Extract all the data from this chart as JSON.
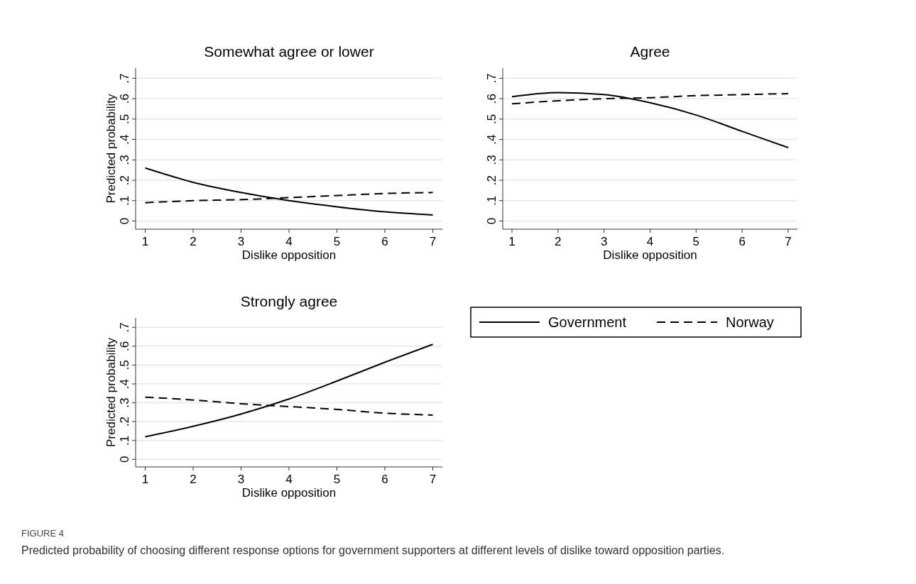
{
  "chart_data": [
    {
      "type": "line",
      "title": "Somewhat agree or lower",
      "xlabel": "Dislike opposition",
      "ylabel": "Predicted probability",
      "x": [
        1,
        2,
        3,
        4,
        5,
        6,
        7
      ],
      "xlim": [
        0.8,
        7.2
      ],
      "xticks": [
        1,
        2,
        3,
        4,
        5,
        6,
        7
      ],
      "ylim": [
        -0.04,
        0.75
      ],
      "yticks": [
        {
          "value": 0,
          "label": "0"
        },
        {
          "value": 0.1,
          "label": ".1"
        },
        {
          "value": 0.2,
          "label": ".2"
        },
        {
          "value": 0.3,
          "label": ".3"
        },
        {
          "value": 0.4,
          "label": ".4"
        },
        {
          "value": 0.5,
          "label": ".5"
        },
        {
          "value": 0.6,
          "label": ".6"
        },
        {
          "value": 0.7,
          "label": ".7"
        }
      ],
      "grid": "y",
      "series": [
        {
          "color": "#000000",
          "line_style": "solid",
          "values": [
            0.26,
            0.19,
            0.14,
            0.1,
            0.07,
            0.045,
            0.03
          ]
        },
        {
          "color": "#000000",
          "line_style": "dashed",
          "values": [
            0.09,
            0.1,
            0.105,
            0.115,
            0.125,
            0.135,
            0.14
          ]
        }
      ]
    },
    {
      "type": "line",
      "title": "Agree",
      "xlabel": "Dislike opposition",
      "x": [
        1,
        2,
        3,
        4,
        5,
        6,
        7
      ],
      "xlim": [
        0.8,
        7.2
      ],
      "xticks": [
        1,
        2,
        3,
        4,
        5,
        6,
        7
      ],
      "ylim": [
        -0.04,
        0.75
      ],
      "yticks": [
        {
          "value": 0,
          "label": "0"
        },
        {
          "value": 0.1,
          "label": ".1"
        },
        {
          "value": 0.2,
          "label": ".2"
        },
        {
          "value": 0.3,
          "label": ".3"
        },
        {
          "value": 0.4,
          "label": ".4"
        },
        {
          "value": 0.5,
          "label": ".5"
        },
        {
          "value": 0.6,
          "label": ".6"
        },
        {
          "value": 0.7,
          "label": ".7"
        }
      ],
      "grid": "y",
      "legend": "bottom",
      "series": [
        {
          "name": "Government",
          "color": "#000000",
          "line_style": "solid",
          "values": [
            0.61,
            0.63,
            0.62,
            0.58,
            0.52,
            0.44,
            0.36
          ]
        },
        {
          "name": "Norway",
          "color": "#000000",
          "line_style": "dashed",
          "values": [
            0.575,
            0.59,
            0.6,
            0.605,
            0.615,
            0.62,
            0.625
          ]
        }
      ]
    },
    {
      "type": "line",
      "title": "Strongly agree",
      "xlabel": "Dislike opposition",
      "ylabel": "Predicted probability",
      "x": [
        1,
        2,
        3,
        4,
        5,
        6,
        7
      ],
      "xlim": [
        0.8,
        7.2
      ],
      "xticks": [
        1,
        2,
        3,
        4,
        5,
        6,
        7
      ],
      "ylim": [
        -0.04,
        0.75
      ],
      "yticks": [
        {
          "value": 0,
          "label": "0"
        },
        {
          "value": 0.1,
          "label": ".1"
        },
        {
          "value": 0.2,
          "label": ".2"
        },
        {
          "value": 0.3,
          "label": ".3"
        },
        {
          "value": 0.4,
          "label": ".4"
        },
        {
          "value": 0.5,
          "label": ".5"
        },
        {
          "value": 0.6,
          "label": ".6"
        },
        {
          "value": 0.7,
          "label": ".7"
        }
      ],
      "grid": "y",
      "annotations": [
        "FIGURE 4",
        "Predicted probability of choosing different response options for government supporters at different levels of dislike toward opposition parties."
      ],
      "series": [
        {
          "color": "#000000",
          "line_style": "solid",
          "values": [
            0.12,
            0.175,
            0.24,
            0.32,
            0.415,
            0.515,
            0.61
          ]
        },
        {
          "color": "#000000",
          "line_style": "dashed",
          "values": [
            0.33,
            0.315,
            0.295,
            0.28,
            0.265,
            0.245,
            0.235
          ]
        }
      ]
    }
  ]
}
